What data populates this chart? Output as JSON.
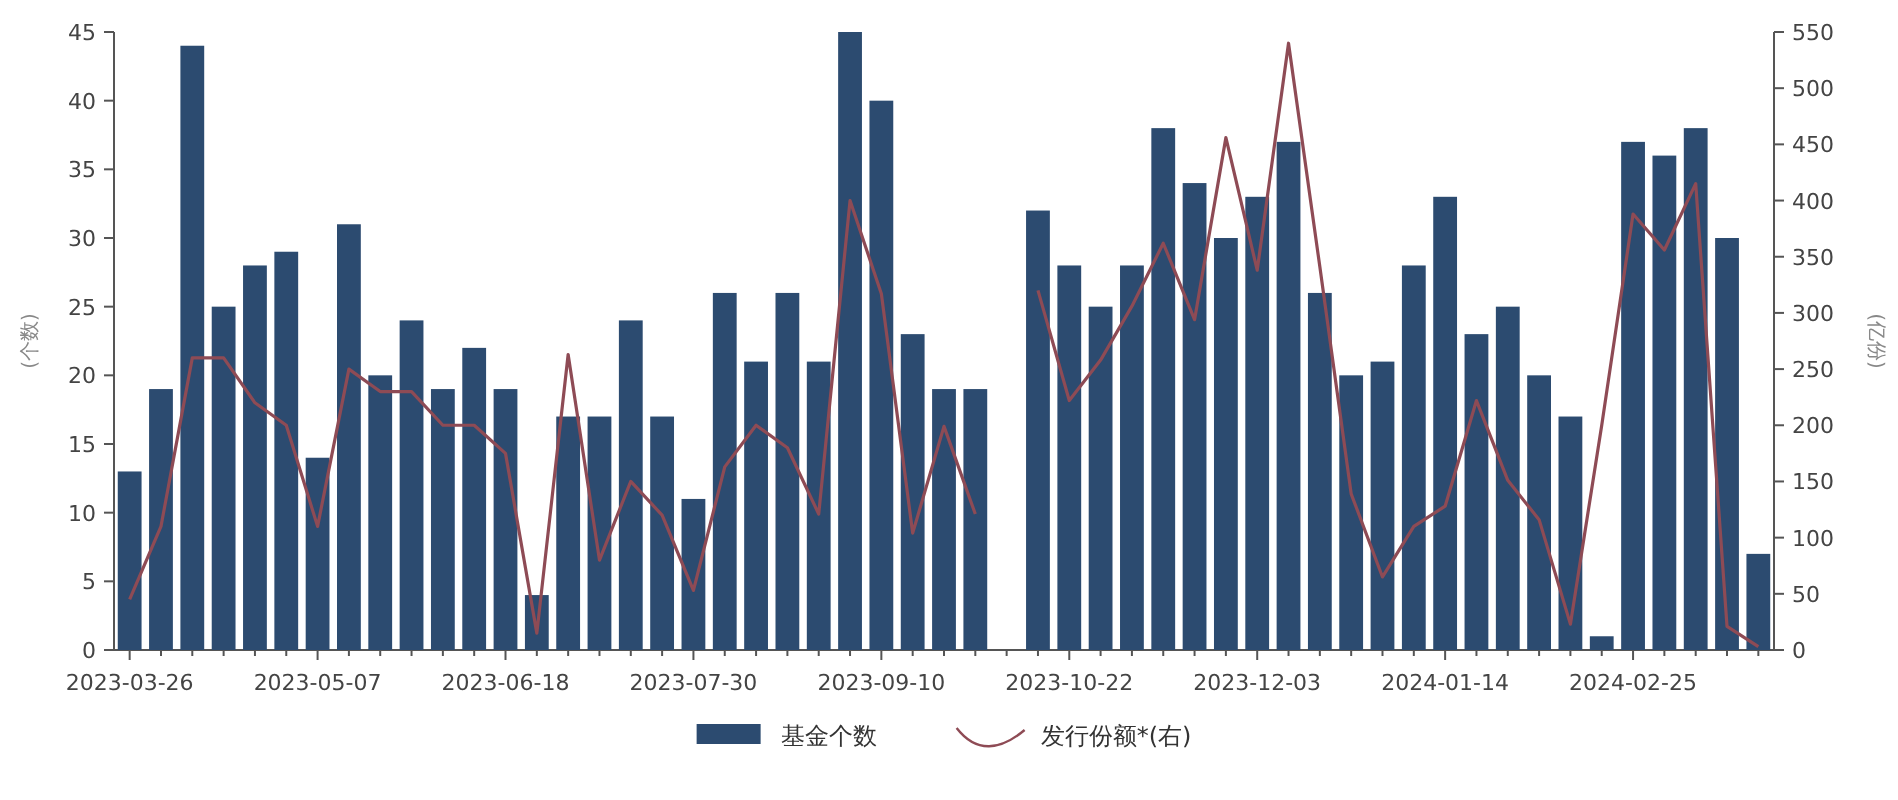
{
  "chart_data": {
    "type": "bar",
    "categories": [
      "2023-03-26",
      null,
      null,
      null,
      null,
      null,
      "2023-05-07",
      null,
      null,
      null,
      null,
      null,
      "2023-06-18",
      null,
      null,
      null,
      null,
      null,
      "2023-07-30",
      null,
      null,
      null,
      null,
      null,
      "2023-09-10",
      null,
      null,
      null,
      null,
      null,
      "2023-10-22",
      null,
      null,
      null,
      null,
      null,
      "2023-12-03",
      null,
      null,
      null,
      null,
      null,
      "2024-01-14",
      null,
      null,
      null,
      null,
      null,
      "2024-02-25",
      null,
      null,
      null,
      null
    ],
    "series": [
      {
        "name": "基金个数",
        "color": "#2c4b70",
        "values": [
          13,
          19,
          44,
          25,
          28,
          29,
          14,
          31,
          20,
          24,
          19,
          22,
          19,
          4,
          17,
          17,
          24,
          17,
          11,
          26,
          21,
          26,
          21,
          45,
          40,
          23,
          19,
          19,
          null,
          32,
          28,
          25,
          28,
          38,
          34,
          30,
          33,
          37,
          26,
          20,
          21,
          28,
          33,
          23,
          25,
          20,
          17,
          1,
          37,
          36,
          38,
          30,
          7
        ]
      },
      {
        "name": "发行份额*(右)",
        "type": "line",
        "axis": "y2",
        "color": "#8e4b55",
        "values": [
          45,
          110,
          260,
          260,
          220,
          200,
          110,
          250,
          230,
          230,
          200,
          200,
          175,
          15,
          263,
          80,
          150,
          120,
          53,
          163,
          200,
          180,
          121,
          400,
          317,
          104,
          199,
          121,
          null,
          320,
          222,
          258,
          306,
          362,
          294,
          456,
          338,
          540,
          341,
          139,
          65,
          110,
          128,
          222,
          151,
          116,
          23,
          200,
          388,
          356,
          415,
          21,
          3
        ]
      }
    ],
    "ylim": [
      0,
      45
    ],
    "yticks": [
      0,
      5,
      10,
      15,
      20,
      25,
      30,
      35,
      40,
      45
    ],
    "y2lim": [
      0,
      550
    ],
    "y2ticks": [
      0,
      50,
      100,
      150,
      200,
      250,
      300,
      350,
      400,
      450,
      500,
      550
    ],
    "ylabel": "(个数)",
    "y2label": "(亿份)",
    "legend": "bottom"
  }
}
